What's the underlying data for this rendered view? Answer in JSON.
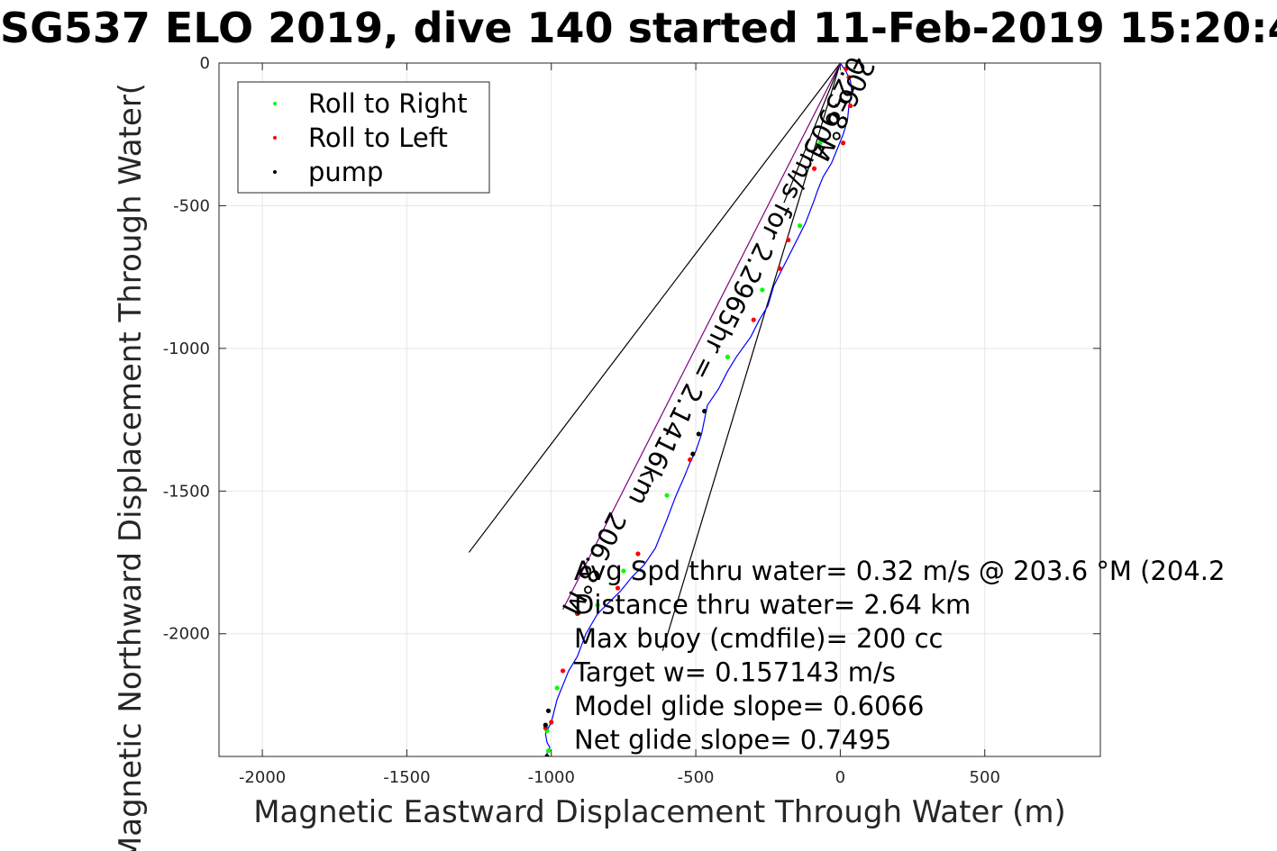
{
  "chart_data": {
    "type": "scatter",
    "title": "SG537 ELO 2019, dive 140 started 11-Feb-2019 15:20:4",
    "xlabel": "Magnetic Eastward Displacement Through Water (m)",
    "ylabel": "Magnetic Northward Displacement Through Water(",
    "xlim": [
      -2150,
      900
    ],
    "ylim": [
      -2430,
      0
    ],
    "xticks": [
      -2000,
      -1500,
      -1000,
      -500,
      0,
      500
    ],
    "yticks": [
      0,
      -500,
      -1000,
      -1500,
      -2000
    ],
    "xtick_labels": [
      "-2000",
      "-1500",
      "-1000",
      "-500",
      "0",
      "500"
    ],
    "ytick_labels": [
      "0",
      "-500",
      "-1000",
      "-1500",
      "-2000"
    ],
    "grid": true,
    "legend_position": "top-left",
    "legend": [
      {
        "label": "Roll to Right",
        "color": "#00ff00"
      },
      {
        "label": "Roll to Left",
        "color": "#ff0000"
      },
      {
        "label": "pump",
        "color": "#000000"
      }
    ],
    "track": {
      "color": "#0000ff",
      "x": [
        0,
        20,
        35,
        40,
        30,
        25,
        10,
        -10,
        -30,
        -60,
        -80,
        -90,
        -120,
        -160,
        -200,
        -230,
        -250,
        -280,
        -310,
        -360,
        -390,
        -420,
        -460,
        -480,
        -500,
        -520,
        -540,
        -570,
        -600,
        -640,
        -680,
        -720,
        -760,
        -800,
        -840,
        -880,
        -910,
        -940,
        -960,
        -980,
        -990,
        -1000,
        -1010,
        -1020,
        -1015,
        -1005,
        -1015,
        -1020
      ],
      "y": [
        0,
        -30,
        -60,
        -100,
        -150,
        -200,
        -250,
        -300,
        -350,
        -400,
        -450,
        -480,
        -560,
        -640,
        -720,
        -780,
        -850,
        -900,
        -960,
        -1030,
        -1080,
        -1140,
        -1200,
        -1300,
        -1360,
        -1400,
        -1450,
        -1520,
        -1600,
        -1700,
        -1760,
        -1800,
        -1850,
        -1890,
        -1930,
        -2000,
        -2080,
        -2130,
        -2180,
        -2230,
        -2270,
        -2310,
        -2330,
        -2350,
        -2380,
        -2400,
        -2420,
        -2430
      ]
    },
    "roll_right": {
      "color": "#00ff00",
      "x": [
        -70,
        -140,
        -270,
        -390,
        -600,
        -750,
        -840,
        -980,
        -1015,
        -1010
      ],
      "y": [
        -280,
        -570,
        -795,
        -1030,
        -1515,
        -1780,
        -1900,
        -2190,
        -2340,
        -2410
      ]
    },
    "roll_left": {
      "color": "#ff0000",
      "x": [
        20,
        30,
        35,
        10,
        -90,
        -180,
        -210,
        -300,
        -520,
        -700,
        -770,
        -910,
        -960,
        -1000,
        -1020
      ],
      "y": [
        -20,
        -50,
        -150,
        -280,
        -370,
        -620,
        -720,
        -900,
        -1390,
        -1720,
        -1840,
        -1930,
        -2130,
        -2310,
        -2330
      ]
    },
    "pump": {
      "color": "#000000",
      "x": [
        -470,
        -490,
        -510,
        -1010,
        -1020,
        -1015
      ],
      "y": [
        -1220,
        -1300,
        -1370,
        -2270,
        -2320,
        -2430
      ]
    },
    "lines": [
      {
        "name": "dog-leg",
        "color": "#000000",
        "x": [
          0,
          -1285
        ],
        "y": [
          0,
          -1715
        ]
      },
      {
        "name": "dog-leg",
        "color": "#000000",
        "x": [
          0,
          -615
        ],
        "y": [
          0,
          -2060
        ]
      },
      {
        "name": "dog-leg",
        "color": "#000000",
        "x": [
          0,
          -195
        ],
        "y": [
          0,
          -490
        ]
      },
      {
        "name": "avg",
        "color": "#800080",
        "x": [
          0,
          -960
        ],
        "y": [
          0,
          -1915
        ]
      }
    ],
    "rotated_labels": [
      {
        "text": "206.8°M",
        "x": -20,
        "y": -150
      },
      {
        "text": "0.25905m/s for 2.2965hr = 2.1416km",
        "x": -350,
        "y": -750
      },
      {
        "text": "206.8°M",
        "x": -880,
        "y": -1740
      }
    ],
    "annotations": [
      "Avg Spd thru water=  0.32 m/s @ 203.6 °M (204.2",
      "Distance thru water=  2.64 km",
      "Max buoy (cmdfile)= 200 cc",
      "Target w= 0.157143 m/s",
      "Model glide slope= 0.6066",
      "Net glide slope= 0.7495"
    ]
  }
}
